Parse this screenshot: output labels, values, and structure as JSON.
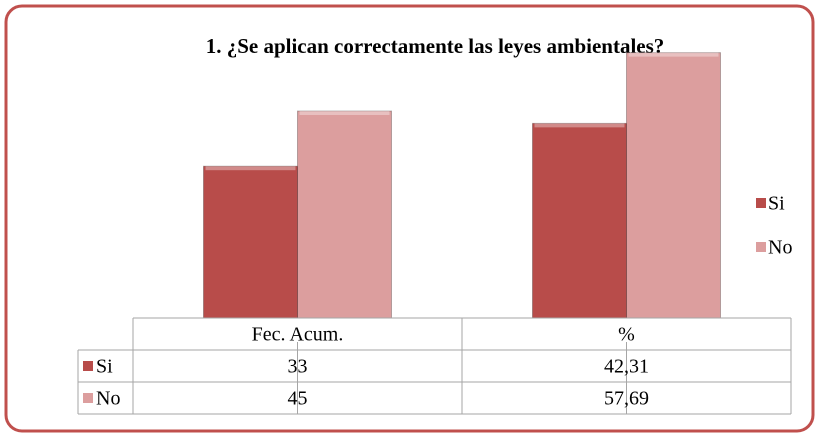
{
  "chart_data": {
    "type": "bar",
    "title": "1. ¿Se aplican correctamente  las leyes ambientales?",
    "categories": [
      "Fec. Acum.",
      "%"
    ],
    "series": [
      {
        "name": "Si",
        "color": "#b84c4a",
        "values": [
          33,
          42.31
        ],
        "value_labels": [
          "33",
          "42,31"
        ]
      },
      {
        "name": "No",
        "color": "#dc9e9e",
        "values": [
          45,
          57.69
        ],
        "value_labels": [
          "45",
          "57,69"
        ]
      }
    ],
    "ylim": [
      0,
      60
    ],
    "legend": "right"
  }
}
